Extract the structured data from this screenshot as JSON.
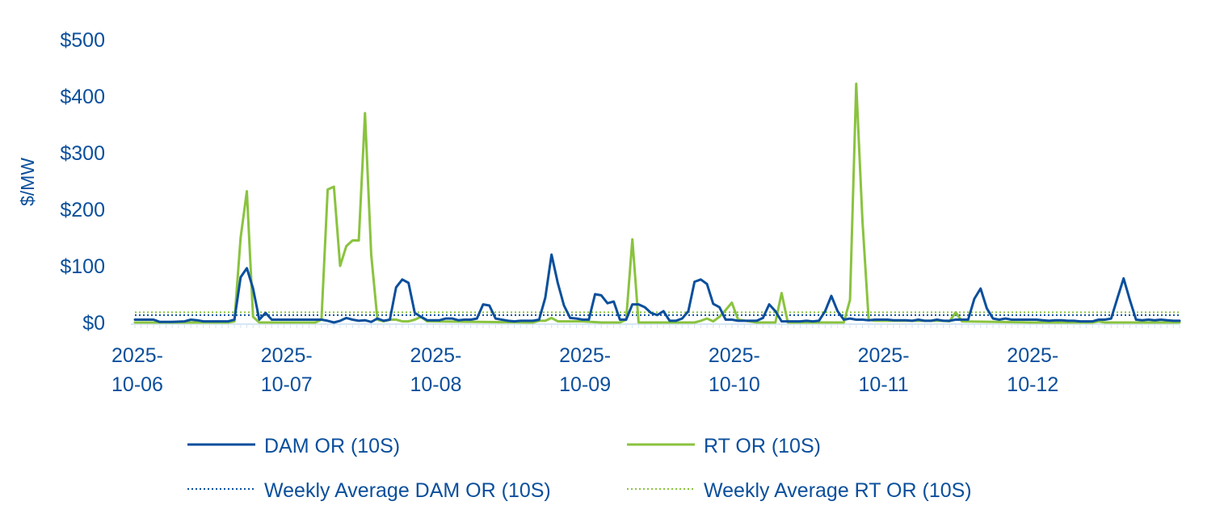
{
  "chart_data": {
    "type": "line",
    "title": "",
    "xlabel": "",
    "ylabel": "$/MW",
    "ylim": [
      0,
      500
    ],
    "y_ticks": [
      0,
      100,
      200,
      300,
      400,
      500
    ],
    "y_tick_labels": [
      "$0",
      "$100",
      "$200",
      "$300",
      "$400",
      "$500"
    ],
    "x_range": [
      0,
      168
    ],
    "x_ticks": [
      {
        "x": 0,
        "line1": "2025-",
        "line2": "10-06"
      },
      {
        "x": 24,
        "line1": "2025-",
        "line2": "10-07"
      },
      {
        "x": 48,
        "line1": "2025-",
        "line2": "10-08"
      },
      {
        "x": 72,
        "line1": "2025-",
        "line2": "10-09"
      },
      {
        "x": 96,
        "line1": "2025-",
        "line2": "10-10"
      },
      {
        "x": 120,
        "line1": "2025-",
        "line2": "10-11"
      },
      {
        "x": 144,
        "line1": "2025-",
        "line2": "10-12"
      }
    ],
    "x_unit": "hours since 2025-10-06 00:00",
    "series": [
      {
        "name": "DAM OR (10S)",
        "color": "#0b4f9c",
        "style": "solid",
        "points": [
          [
            0,
            5
          ],
          [
            3,
            5
          ],
          [
            4,
            1
          ],
          [
            6,
            1
          ],
          [
            8,
            2
          ],
          [
            9,
            5
          ],
          [
            10,
            4
          ],
          [
            11,
            2
          ],
          [
            13,
            2
          ],
          [
            15,
            2
          ],
          [
            16,
            5
          ],
          [
            17,
            80
          ],
          [
            18,
            96
          ],
          [
            19,
            60
          ],
          [
            20,
            5
          ],
          [
            21,
            17
          ],
          [
            22,
            5
          ],
          [
            27,
            5
          ],
          [
            29,
            5
          ],
          [
            30,
            5
          ],
          [
            31,
            3
          ],
          [
            32,
            0
          ],
          [
            33,
            3
          ],
          [
            34,
            8
          ],
          [
            35,
            5
          ],
          [
            36,
            3
          ],
          [
            37,
            4
          ],
          [
            38,
            1
          ],
          [
            39,
            7
          ],
          [
            40,
            3
          ],
          [
            41,
            5
          ],
          [
            42,
            62
          ],
          [
            43,
            76
          ],
          [
            44,
            70
          ],
          [
            45,
            17
          ],
          [
            46,
            10
          ],
          [
            47,
            4
          ],
          [
            48,
            4
          ],
          [
            49,
            4
          ],
          [
            50,
            7
          ],
          [
            51,
            7
          ],
          [
            52,
            4
          ],
          [
            53,
            5
          ],
          [
            54,
            5
          ],
          [
            55,
            7
          ],
          [
            56,
            32
          ],
          [
            57,
            30
          ],
          [
            58,
            7
          ],
          [
            59,
            5
          ],
          [
            60,
            3
          ],
          [
            61,
            2
          ],
          [
            62,
            3
          ],
          [
            63,
            3
          ],
          [
            64,
            3
          ],
          [
            65,
            5
          ],
          [
            66,
            44
          ],
          [
            67,
            120
          ],
          [
            68,
            70
          ],
          [
            69,
            30
          ],
          [
            70,
            8
          ],
          [
            71,
            7
          ],
          [
            72,
            5
          ],
          [
            73,
            5
          ],
          [
            74,
            50
          ],
          [
            75,
            48
          ],
          [
            76,
            34
          ],
          [
            77,
            37
          ],
          [
            78,
            5
          ],
          [
            79,
            5
          ],
          [
            80,
            32
          ],
          [
            81,
            32
          ],
          [
            82,
            27
          ],
          [
            83,
            17
          ],
          [
            84,
            13
          ],
          [
            85,
            20
          ],
          [
            86,
            3
          ],
          [
            87,
            3
          ],
          [
            88,
            7
          ],
          [
            89,
            20
          ],
          [
            90,
            72
          ],
          [
            91,
            76
          ],
          [
            92,
            68
          ],
          [
            93,
            33
          ],
          [
            94,
            27
          ],
          [
            95,
            5
          ],
          [
            96,
            5
          ],
          [
            97,
            3
          ],
          [
            98,
            3
          ],
          [
            99,
            3
          ],
          [
            100,
            3
          ],
          [
            101,
            8
          ],
          [
            102,
            32
          ],
          [
            103,
            20
          ],
          [
            104,
            2
          ],
          [
            105,
            2
          ],
          [
            106,
            2
          ],
          [
            107,
            2
          ],
          [
            108,
            3
          ],
          [
            109,
            2
          ],
          [
            110,
            3
          ],
          [
            111,
            20
          ],
          [
            112,
            47
          ],
          [
            113,
            20
          ],
          [
            114,
            5
          ],
          [
            115,
            7
          ],
          [
            116,
            5
          ],
          [
            117,
            5
          ],
          [
            118,
            4
          ],
          [
            119,
            5
          ],
          [
            120,
            5
          ],
          [
            121,
            5
          ],
          [
            122,
            4
          ],
          [
            123,
            4
          ],
          [
            124,
            4
          ],
          [
            125,
            3
          ],
          [
            126,
            5
          ],
          [
            127,
            3
          ],
          [
            128,
            3
          ],
          [
            129,
            5
          ],
          [
            130,
            3
          ],
          [
            131,
            3
          ],
          [
            132,
            5
          ],
          [
            133,
            5
          ],
          [
            134,
            5
          ],
          [
            135,
            42
          ],
          [
            136,
            60
          ],
          [
            137,
            25
          ],
          [
            138,
            7
          ],
          [
            139,
            5
          ],
          [
            140,
            7
          ],
          [
            141,
            5
          ],
          [
            142,
            5
          ],
          [
            143,
            5
          ],
          [
            144,
            5
          ],
          [
            145,
            5
          ],
          [
            146,
            4
          ],
          [
            147,
            3
          ],
          [
            148,
            4
          ],
          [
            149,
            4
          ],
          [
            150,
            3
          ],
          [
            151,
            3
          ],
          [
            152,
            2
          ],
          [
            153,
            2
          ],
          [
            154,
            2
          ],
          [
            155,
            5
          ],
          [
            156,
            5
          ],
          [
            157,
            7
          ],
          [
            158,
            43
          ],
          [
            159,
            78
          ],
          [
            160,
            40
          ],
          [
            161,
            5
          ],
          [
            162,
            4
          ],
          [
            163,
            5
          ],
          [
            164,
            4
          ],
          [
            165,
            5
          ],
          [
            166,
            4
          ],
          [
            167,
            3
          ],
          [
            168,
            3
          ]
        ]
      },
      {
        "name": "RT OR (10S)",
        "color": "#8ac33f",
        "style": "solid",
        "points": [
          [
            0,
            0
          ],
          [
            15,
            0
          ],
          [
            16,
            2
          ],
          [
            17,
            150
          ],
          [
            18,
            232
          ],
          [
            19,
            10
          ],
          [
            20,
            0
          ],
          [
            29,
            0
          ],
          [
            30,
            5
          ],
          [
            31,
            235
          ],
          [
            32,
            240
          ],
          [
            33,
            100
          ],
          [
            34,
            135
          ],
          [
            35,
            145
          ],
          [
            36,
            145
          ],
          [
            37,
            370
          ],
          [
            38,
            120
          ],
          [
            39,
            5
          ],
          [
            40,
            2
          ],
          [
            41,
            5
          ],
          [
            42,
            5
          ],
          [
            43,
            2
          ],
          [
            44,
            2
          ],
          [
            45,
            5
          ],
          [
            46,
            10
          ],
          [
            47,
            2
          ],
          [
            48,
            2
          ],
          [
            64,
            0
          ],
          [
            65,
            3
          ],
          [
            66,
            3
          ],
          [
            67,
            8
          ],
          [
            68,
            2
          ],
          [
            72,
            2
          ],
          [
            75,
            0
          ],
          [
            78,
            0
          ],
          [
            79,
            5
          ],
          [
            80,
            147
          ],
          [
            81,
            0
          ],
          [
            90,
            0
          ],
          [
            91,
            3
          ],
          [
            92,
            7
          ],
          [
            93,
            2
          ],
          [
            94,
            10
          ],
          [
            95,
            22
          ],
          [
            96,
            35
          ],
          [
            97,
            5
          ],
          [
            100,
            0
          ],
          [
            103,
            0
          ],
          [
            104,
            52
          ],
          [
            105,
            0
          ],
          [
            114,
            0
          ],
          [
            115,
            40
          ],
          [
            116,
            422
          ],
          [
            117,
            180
          ],
          [
            118,
            5
          ],
          [
            119,
            3
          ],
          [
            130,
            3
          ],
          [
            131,
            2
          ],
          [
            132,
            18
          ],
          [
            133,
            2
          ],
          [
            144,
            0
          ],
          [
            154,
            0
          ],
          [
            155,
            2
          ],
          [
            156,
            0
          ],
          [
            168,
            0
          ]
        ]
      },
      {
        "name": "Weekly Average DAM OR (10S)",
        "color": "#0b4f9c",
        "style": "dotted",
        "value": 13
      },
      {
        "name": "Weekly Average RT OR (10S)",
        "color": "#8ac33f",
        "style": "dotted",
        "value": 18
      }
    ],
    "legend": {
      "placement": "bottom",
      "entries": [
        "DAM OR (10S)",
        "RT OR (10S)",
        "Weekly Average DAM OR (10S)",
        "Weekly Average RT OR (10S)"
      ]
    },
    "grid": false
  }
}
